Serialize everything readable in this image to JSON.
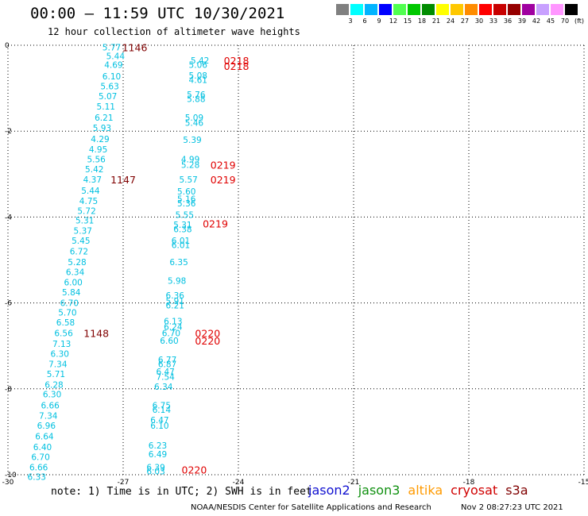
{
  "title": "00:00 – 11:59 UTC 10/30/2021",
  "subtitle": "12 hour collection of altimeter wave heights",
  "note": "note: 1) Time is in UTC; 2) SWH is in feet",
  "satellites": [
    {
      "name": "jason2",
      "color": "#1010d0"
    },
    {
      "name": "jason3",
      "color": "#109010"
    },
    {
      "name": "altika",
      "color": "#ff9a00"
    },
    {
      "name": "cryosat",
      "color": "#d00000"
    },
    {
      "name": "s3a",
      "color": "#800000"
    }
  ],
  "credit": "NOAA/NESDIS Center for Satellite Applications and Research",
  "timestamp": "Nov  2 08:27:23 UTC 2021",
  "colorbar": {
    "colors": [
      "#808080",
      "#00ffff",
      "#00b4ff",
      "#0000ff",
      "#50ff50",
      "#00c800",
      "#008c00",
      "#ffff00",
      "#ffc800",
      "#ff8c00",
      "#ff0000",
      "#c80000",
      "#960000",
      "#a000a0",
      "#c8a0ff",
      "#ff96ff",
      "#000000"
    ],
    "labels": [
      "3",
      "6",
      "9",
      "12",
      "15",
      "18",
      "21",
      "24",
      "27",
      "30",
      "33",
      "36",
      "39",
      "42",
      "45",
      "70",
      "(ft)"
    ],
    "unit": "(ft)"
  },
  "chart_data": {
    "type": "scatter",
    "title": "00:00 – 11:59 UTC 10/30/2021",
    "subtitle": "12 hour collection of altimeter wave heights",
    "xlim": [
      -30,
      -15
    ],
    "ylim": [
      -10,
      0
    ],
    "xticks": [
      "-30",
      "-27",
      "-24",
      "-21",
      "-18",
      "-15"
    ],
    "yticks": [
      "0",
      "-2",
      "-4",
      "-6",
      "-8",
      "-10"
    ],
    "grid": true,
    "point_color": "#00c0e0",
    "time_color": "#800000",
    "time_color_alt": "#e00000",
    "tracks": [
      {
        "name": "track-1",
        "points": [
          {
            "x": -27.3,
            "y": -0.05,
            "v": "5.77"
          },
          {
            "x": -27.2,
            "y": -0.25,
            "v": "5.44"
          },
          {
            "x": -27.25,
            "y": -0.45,
            "v": "4.69"
          },
          {
            "x": -27.3,
            "y": -0.72,
            "v": "6.10"
          },
          {
            "x": -27.35,
            "y": -0.95,
            "v": "5.63"
          },
          {
            "x": -27.4,
            "y": -1.18,
            "v": "5.07"
          },
          {
            "x": -27.45,
            "y": -1.42,
            "v": "5.11"
          },
          {
            "x": -27.5,
            "y": -1.68,
            "v": "6.21"
          },
          {
            "x": -27.55,
            "y": -1.92,
            "v": "5.93"
          },
          {
            "x": -27.6,
            "y": -2.18,
            "v": "4.29"
          },
          {
            "x": -27.65,
            "y": -2.42,
            "v": "4.95"
          },
          {
            "x": -27.7,
            "y": -2.65,
            "v": "5.56"
          },
          {
            "x": -27.75,
            "y": -2.88,
            "v": "5.42"
          },
          {
            "x": -27.8,
            "y": -3.12,
            "v": "4.37"
          },
          {
            "x": -27.85,
            "y": -3.38,
            "v": "5.44"
          },
          {
            "x": -27.9,
            "y": -3.62,
            "v": "4.75"
          },
          {
            "x": -27.95,
            "y": -3.85,
            "v": "5.72"
          },
          {
            "x": -28.0,
            "y": -4.08,
            "v": "5.31"
          },
          {
            "x": -28.05,
            "y": -4.32,
            "v": "5.37"
          },
          {
            "x": -28.1,
            "y": -4.55,
            "v": "5.45"
          },
          {
            "x": -28.15,
            "y": -4.8,
            "v": "6.72"
          },
          {
            "x": -28.2,
            "y": -5.05,
            "v": "5.28"
          },
          {
            "x": -28.25,
            "y": -5.28,
            "v": "6.34"
          },
          {
            "x": -28.3,
            "y": -5.52,
            "v": "6.00"
          },
          {
            "x": -28.35,
            "y": -5.75,
            "v": "5.84"
          },
          {
            "x": -28.4,
            "y": -6.0,
            "v": "6.70"
          },
          {
            "x": -28.45,
            "y": -6.22,
            "v": "5.70"
          },
          {
            "x": -28.5,
            "y": -6.45,
            "v": "6.58"
          },
          {
            "x": -28.55,
            "y": -6.7,
            "v": "6.56"
          },
          {
            "x": -28.6,
            "y": -6.95,
            "v": "7.13"
          },
          {
            "x": -28.65,
            "y": -7.18,
            "v": "6.30"
          },
          {
            "x": -28.7,
            "y": -7.42,
            "v": "7.34"
          },
          {
            "x": -28.75,
            "y": -7.65,
            "v": "5.71"
          },
          {
            "x": -28.8,
            "y": -7.9,
            "v": "6.28"
          },
          {
            "x": -28.85,
            "y": -8.12,
            "v": "6.30"
          },
          {
            "x": -28.9,
            "y": -8.38,
            "v": "6.66"
          },
          {
            "x": -28.95,
            "y": -8.62,
            "v": "7.34"
          },
          {
            "x": -29.0,
            "y": -8.85,
            "v": "6.96"
          },
          {
            "x": -29.05,
            "y": -9.1,
            "v": "6.64"
          },
          {
            "x": -29.1,
            "y": -9.35,
            "v": "6.40"
          },
          {
            "x": -29.15,
            "y": -9.58,
            "v": "6.70"
          },
          {
            "x": -29.2,
            "y": -9.82,
            "v": "6.66"
          },
          {
            "x": -29.25,
            "y": -10.05,
            "v": "6.33"
          }
        ],
        "times": [
          {
            "x": -26.7,
            "y": -0.05,
            "t": "1146"
          },
          {
            "x": -27.0,
            "y": -3.12,
            "t": "1147"
          },
          {
            "x": -27.7,
            "y": -6.7,
            "t": "1148"
          }
        ]
      },
      {
        "name": "track-2",
        "points": [
          {
            "x": -25.0,
            "y": -0.35,
            "v": "5.42"
          },
          {
            "x": -25.05,
            "y": -0.45,
            "v": "5.06"
          },
          {
            "x": -25.05,
            "y": -0.7,
            "v": "5.08"
          },
          {
            "x": -25.05,
            "y": -0.8,
            "v": "4.61"
          },
          {
            "x": -25.1,
            "y": -1.15,
            "v": "5.76"
          },
          {
            "x": -25.1,
            "y": -1.25,
            "v": "5.88"
          },
          {
            "x": -25.15,
            "y": -1.68,
            "v": "5.09"
          },
          {
            "x": -25.15,
            "y": -1.8,
            "v": "5.46"
          },
          {
            "x": -25.2,
            "y": -2.2,
            "v": "5.39"
          },
          {
            "x": -25.25,
            "y": -2.65,
            "v": "4.99"
          },
          {
            "x": -25.25,
            "y": -2.78,
            "v": "5.28"
          },
          {
            "x": -25.3,
            "y": -3.12,
            "v": "5.57"
          },
          {
            "x": -25.35,
            "y": -3.4,
            "v": "5.60"
          },
          {
            "x": -25.35,
            "y": -3.58,
            "v": "5.16"
          },
          {
            "x": -25.35,
            "y": -3.68,
            "v": "5.36"
          },
          {
            "x": -25.4,
            "y": -3.95,
            "v": "5.55"
          },
          {
            "x": -25.45,
            "y": -4.18,
            "v": "5.31"
          },
          {
            "x": -25.45,
            "y": -4.28,
            "v": "6.38"
          },
          {
            "x": -25.5,
            "y": -4.55,
            "v": "6.01"
          },
          {
            "x": -25.5,
            "y": -4.65,
            "v": "6.01"
          },
          {
            "x": -25.55,
            "y": -5.05,
            "v": "6.35"
          },
          {
            "x": -25.6,
            "y": -5.48,
            "v": "5.98"
          },
          {
            "x": -25.65,
            "y": -5.82,
            "v": "6.36"
          },
          {
            "x": -25.65,
            "y": -5.95,
            "v": "5.91"
          },
          {
            "x": -25.65,
            "y": -6.05,
            "v": "6.21"
          },
          {
            "x": -25.7,
            "y": -6.42,
            "v": "6.13"
          },
          {
            "x": -25.7,
            "y": -6.55,
            "v": "6.24"
          },
          {
            "x": -25.75,
            "y": -6.7,
            "v": "6.70"
          },
          {
            "x": -25.8,
            "y": -6.88,
            "v": "6.60"
          },
          {
            "x": -25.85,
            "y": -7.32,
            "v": "6.77"
          },
          {
            "x": -25.85,
            "y": -7.42,
            "v": "6.87"
          },
          {
            "x": -25.9,
            "y": -7.6,
            "v": "6.47"
          },
          {
            "x": -25.9,
            "y": -7.72,
            "v": "7.54"
          },
          {
            "x": -25.95,
            "y": -7.95,
            "v": "6.34"
          },
          {
            "x": -26.0,
            "y": -8.38,
            "v": "6.75"
          },
          {
            "x": -26.0,
            "y": -8.48,
            "v": "6.14"
          },
          {
            "x": -26.05,
            "y": -8.72,
            "v": "6.47"
          },
          {
            "x": -26.05,
            "y": -8.85,
            "v": "6.10"
          },
          {
            "x": -26.1,
            "y": -9.32,
            "v": "6.23"
          },
          {
            "x": -26.1,
            "y": -9.52,
            "v": "6.49"
          },
          {
            "x": -26.15,
            "y": -9.82,
            "v": "6.39"
          },
          {
            "x": -26.15,
            "y": -9.92,
            "v": "6.03"
          }
        ],
        "times": [
          {
            "x": -24.05,
            "y": -0.35,
            "t": "0218"
          },
          {
            "x": -24.05,
            "y": -0.48,
            "t": "0218"
          },
          {
            "x": -24.4,
            "y": -2.78,
            "t": "0219"
          },
          {
            "x": -24.4,
            "y": -3.12,
            "t": "0219"
          },
          {
            "x": -24.6,
            "y": -4.15,
            "t": "0219"
          },
          {
            "x": -24.8,
            "y": -6.7,
            "t": "0220"
          },
          {
            "x": -24.8,
            "y": -6.88,
            "t": "0220"
          },
          {
            "x": -25.15,
            "y": -9.88,
            "t": "0220"
          }
        ]
      }
    ]
  }
}
